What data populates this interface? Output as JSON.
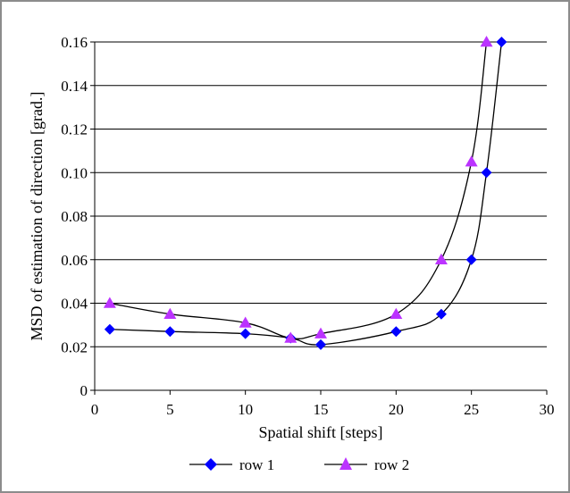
{
  "chart_data": {
    "type": "line",
    "xlabel": "Spatial shift [steps]",
    "ylabel": "MSD of estimation of direction [grad.]",
    "xlim": [
      0,
      30
    ],
    "ylim": [
      0,
      0.16
    ],
    "x_ticks": [
      "0",
      "5",
      "10",
      "15",
      "20",
      "25",
      "30"
    ],
    "y_ticks": [
      "0",
      "0.02",
      "0.04",
      "0.06",
      "0.08",
      "0.10",
      "0.12",
      "0.14",
      "0.16"
    ],
    "grid": "horizontal",
    "legend_position": "bottom",
    "series": [
      {
        "name": "row 1",
        "marker": "diamond",
        "color": "#0000ff",
        "x": [
          1,
          5,
          10,
          13,
          15,
          20,
          23,
          25,
          26,
          27
        ],
        "y": [
          0.028,
          0.027,
          0.026,
          0.024,
          0.021,
          0.027,
          0.035,
          0.06,
          0.1,
          0.16
        ]
      },
      {
        "name": "row 2",
        "marker": "triangle",
        "color": "#bb33ff",
        "x": [
          1,
          5,
          10,
          13,
          15,
          20,
          23,
          25,
          26
        ],
        "y": [
          0.04,
          0.035,
          0.031,
          0.024,
          0.026,
          0.035,
          0.06,
          0.105,
          0.16
        ]
      }
    ]
  }
}
